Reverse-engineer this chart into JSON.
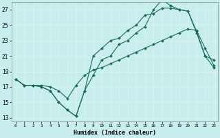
{
  "xlabel": "Humidex (Indice chaleur)",
  "bg_color": "#c8eded",
  "line_color": "#1a6b5a",
  "xlim": [
    -0.5,
    23.5
  ],
  "ylim": [
    12.5,
    28.0
  ],
  "yticks": [
    13,
    15,
    17,
    19,
    21,
    23,
    25,
    27
  ],
  "xticks": [
    0,
    1,
    2,
    3,
    4,
    5,
    6,
    7,
    8,
    9,
    10,
    11,
    12,
    13,
    14,
    15,
    16,
    17,
    18,
    19,
    20,
    21,
    22,
    23
  ],
  "series": [
    {
      "x": [
        0,
        1,
        2,
        3,
        4,
        5,
        6,
        7,
        8,
        9,
        10,
        11,
        12,
        13,
        14,
        15,
        16,
        17,
        18,
        19,
        20,
        21,
        22,
        23
      ],
      "y": [
        18.0,
        17.2,
        17.2,
        17.0,
        16.5,
        15.0,
        14.0,
        13.2,
        16.5,
        18.5,
        20.5,
        21.0,
        22.5,
        23.0,
        24.0,
        24.8,
        27.0,
        28.3,
        27.5,
        27.0,
        26.8,
        24.2,
        21.0,
        20.5
      ]
    },
    {
      "x": [
        0,
        1,
        2,
        3,
        4,
        5,
        6,
        7,
        8,
        9,
        10,
        11,
        12,
        13,
        14,
        15,
        16,
        17,
        18,
        19,
        20,
        21,
        22,
        23
      ],
      "y": [
        18.0,
        17.2,
        17.2,
        17.0,
        16.5,
        15.0,
        14.0,
        13.2,
        16.5,
        21.0,
        22.0,
        23.0,
        23.3,
        24.3,
        25.0,
        26.3,
        26.5,
        27.2,
        27.2,
        27.0,
        26.8,
        24.0,
        21.0,
        19.5
      ]
    },
    {
      "x": [
        0,
        1,
        2,
        3,
        4,
        5,
        6,
        7,
        8,
        9,
        10,
        11,
        12,
        13,
        14,
        15,
        16,
        17,
        18,
        19,
        20,
        21,
        22,
        23
      ],
      "y": [
        18.0,
        17.2,
        17.2,
        17.2,
        17.0,
        16.5,
        15.5,
        17.2,
        18.5,
        19.2,
        19.5,
        20.0,
        20.5,
        21.0,
        21.5,
        22.0,
        22.5,
        23.0,
        23.5,
        24.0,
        24.5,
        24.3,
        22.0,
        19.8
      ]
    }
  ]
}
